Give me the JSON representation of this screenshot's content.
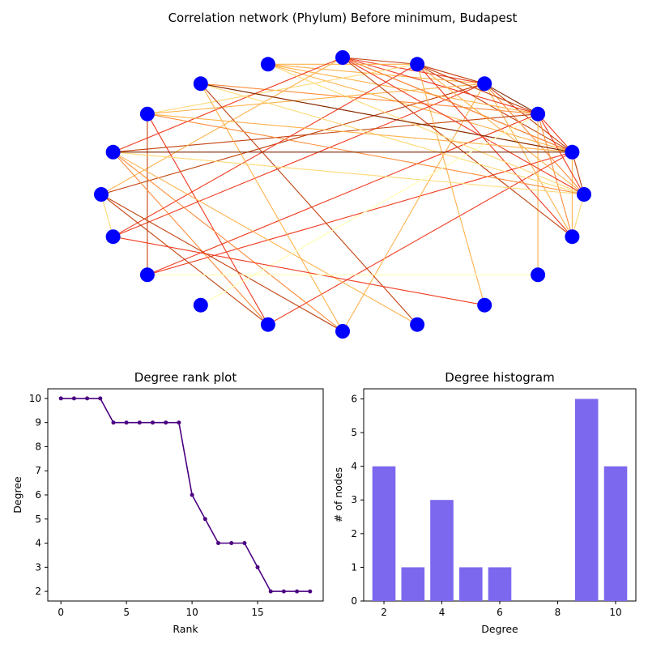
{
  "figure": {
    "network_title": "Correlation network (Phylum) Before minimum, Budapest"
  },
  "network": {
    "node_count": 20,
    "node_color": "#0000ff",
    "edge_colormap": [
      "#ffffb2",
      "#fed976",
      "#feb24c",
      "#fd8d3c",
      "#f03b20",
      "#c2410c",
      "#7f2704"
    ],
    "edges": [
      [
        1,
        3,
        0.9
      ],
      [
        1,
        2,
        0.7
      ],
      [
        1,
        4,
        0.9
      ],
      [
        1,
        5,
        0.8
      ],
      [
        1,
        6,
        0.4
      ],
      [
        1,
        7,
        0.5
      ],
      [
        1,
        0,
        0.8
      ],
      [
        1,
        19,
        0.3
      ],
      [
        1,
        14,
        0.6
      ],
      [
        1,
        12,
        0.6
      ],
      [
        3,
        2,
        0.95
      ],
      [
        3,
        4,
        0.8
      ],
      [
        3,
        5,
        0.6
      ],
      [
        3,
        6,
        0.4
      ],
      [
        3,
        8,
        0.4
      ],
      [
        3,
        10,
        0.9
      ],
      [
        3,
        11,
        0.7
      ],
      [
        3,
        0,
        0.5
      ],
      [
        3,
        19,
        0.4
      ],
      [
        3,
        15,
        0.3
      ],
      [
        2,
        4,
        0.8
      ],
      [
        2,
        5,
        0.7
      ],
      [
        2,
        6,
        0.3
      ],
      [
        2,
        7,
        0.5
      ],
      [
        2,
        9,
        0.9
      ],
      [
        2,
        0,
        0.7
      ],
      [
        2,
        19,
        0.5
      ],
      [
        2,
        18,
        0.3
      ],
      [
        2,
        12,
        0.6
      ],
      [
        4,
        5,
        0.9
      ],
      [
        4,
        6,
        0.3
      ],
      [
        4,
        8,
        0.2
      ],
      [
        4,
        0,
        0.4
      ],
      [
        4,
        19,
        0.6
      ],
      [
        4,
        17,
        0.3
      ],
      [
        4,
        11,
        0.7
      ],
      [
        5,
        9,
        0.6
      ],
      [
        5,
        10,
        0.4
      ],
      [
        5,
        0,
        0.7
      ],
      [
        5,
        1,
        0.5
      ],
      [
        5,
        19,
        0.8
      ],
      [
        6,
        0,
        0.1
      ],
      [
        7,
        0,
        0.15
      ],
      [
        7,
        1,
        0.95
      ],
      [
        7,
        16,
        0.8
      ],
      [
        7,
        15,
        0.4
      ],
      [
        8,
        0,
        0.5
      ],
      [
        8,
        1,
        0.3
      ],
      [
        8,
        14,
        0.6
      ],
      [
        8,
        12,
        0.8
      ],
      [
        9,
        0,
        0.2
      ],
      [
        9,
        1,
        0.95
      ],
      [
        9,
        15,
        0.5
      ],
      [
        9,
        16,
        0.4
      ],
      [
        9,
        14,
        0.5
      ],
      [
        10,
        11,
        0.2
      ],
      [
        10,
        14,
        0.8
      ],
      [
        10,
        15,
        0.9
      ],
      [
        19,
        0,
        0.1
      ],
      [
        13,
        2,
        0.05
      ],
      [
        17,
        11,
        0.6
      ],
      [
        18,
        12,
        0.05
      ]
    ]
  },
  "chart_data": [
    {
      "type": "line",
      "title": "Degree rank plot",
      "xlabel": "Rank",
      "ylabel": "Degree",
      "x": [
        0,
        1,
        2,
        3,
        4,
        5,
        6,
        7,
        8,
        9,
        10,
        11,
        12,
        13,
        14,
        15,
        16,
        17,
        18,
        19
      ],
      "values": [
        10,
        10,
        10,
        10,
        9,
        9,
        9,
        9,
        9,
        9,
        6,
        5,
        4,
        4,
        4,
        3,
        2,
        2,
        2,
        2
      ],
      "xlim": [
        -1,
        20
      ],
      "ylim": [
        1.6,
        10.4
      ],
      "xticks": [
        "0",
        "5",
        "10",
        "15"
      ],
      "yticks": [
        "2",
        "3",
        "4",
        "5",
        "6",
        "7",
        "8",
        "9",
        "10"
      ],
      "color": "#4b0082",
      "marker": "dot"
    },
    {
      "type": "bar",
      "title": "Degree histogram",
      "xlabel": "Degree",
      "ylabel": "# of nodes",
      "categories": [
        2,
        3,
        4,
        5,
        6,
        9,
        10
      ],
      "values": [
        4,
        1,
        3,
        1,
        1,
        6,
        4
      ],
      "xlim": [
        1.3,
        10.7
      ],
      "ylim": [
        0,
        6.3
      ],
      "xticks": [
        "2",
        "4",
        "6",
        "8",
        "10"
      ],
      "yticks": [
        "0",
        "1",
        "2",
        "3",
        "4",
        "5",
        "6"
      ],
      "color": "#7b68ee"
    }
  ]
}
